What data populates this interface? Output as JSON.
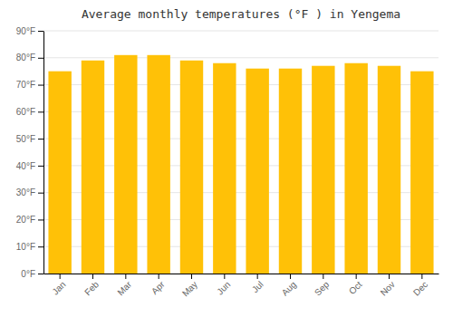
{
  "chart_data": {
    "type": "bar",
    "title": "Average monthly temperatures (°F ) in Yengema",
    "categories": [
      "Jan",
      "Feb",
      "Mar",
      "Apr",
      "May",
      "Jun",
      "Jul",
      "Aug",
      "Sep",
      "Oct",
      "Nov",
      "Dec"
    ],
    "values": [
      75,
      79,
      81,
      81,
      79,
      78,
      76,
      76,
      77,
      78,
      77,
      75
    ],
    "color": "#FFC107",
    "ylim": [
      0,
      90
    ],
    "yticks": [
      {
        "value": 0,
        "label": "0°F"
      },
      {
        "value": 10,
        "label": "10°F"
      },
      {
        "value": 20,
        "label": "20°F"
      },
      {
        "value": 30,
        "label": "30°F"
      },
      {
        "value": 40,
        "label": "40°F"
      },
      {
        "value": 50,
        "label": "50°F"
      },
      {
        "value": 60,
        "label": "60°F"
      },
      {
        "value": 70,
        "label": "70°F"
      },
      {
        "value": 80,
        "label": "80°F"
      },
      {
        "value": 90,
        "label": "90°F"
      }
    ],
    "grid": true
  }
}
